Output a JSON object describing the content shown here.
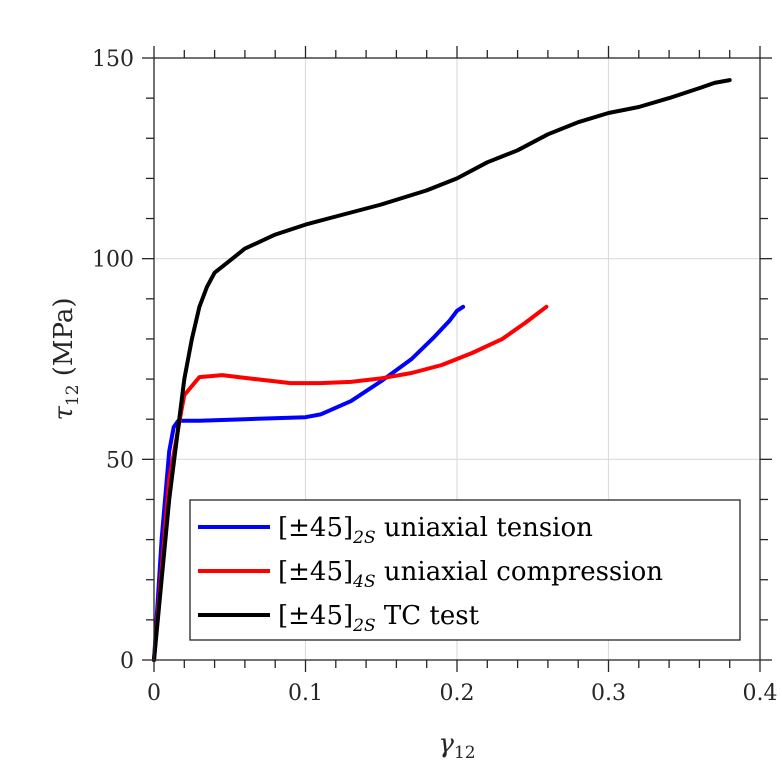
{
  "chart_data": {
    "type": "line",
    "xlabel": {
      "symbol": "γ",
      "sub": "12",
      "suffix": ""
    },
    "ylabel": {
      "symbol": "τ",
      "sub": "12",
      "suffix": " (MPa)"
    },
    "xlim": [
      0,
      0.4
    ],
    "ylim": [
      0,
      150
    ],
    "xticks": [
      0,
      0.1,
      0.2,
      0.3,
      0.4
    ],
    "xtick_labels": [
      "0",
      "0.1",
      "0.2",
      "0.3",
      "0.4"
    ],
    "yticks": [
      0,
      50,
      100,
      150
    ],
    "ytick_labels": [
      "0",
      "50",
      "100",
      "150"
    ],
    "x_minor_step": 0.02,
    "y_minor_step": 10,
    "grid": true,
    "legend_placement": "bottom-right",
    "series": [
      {
        "name": "[±45]2S uniaxial tension",
        "label_parts": {
          "main": "[±45]",
          "sub": "2S",
          "rest": " uniaxial tension"
        },
        "color": "#0000ff",
        "x": [
          0,
          0.005,
          0.01,
          0.013,
          0.016,
          0.03,
          0.06,
          0.1,
          0.11,
          0.13,
          0.15,
          0.17,
          0.185,
          0.195,
          0.2,
          0.204
        ],
        "y": [
          0,
          30,
          52,
          58,
          59.6,
          59.6,
          60,
          60.5,
          61.2,
          64.5,
          69.5,
          75,
          80.5,
          84.5,
          87,
          88
        ]
      },
      {
        "name": "[±45]4S uniaxial compression",
        "label_parts": {
          "main": "[±45]",
          "sub": "4S",
          "rest": " uniaxial compression"
        },
        "color": "#ff0000",
        "x": [
          0,
          0.01,
          0.018,
          0.02,
          0.03,
          0.045,
          0.06,
          0.09,
          0.11,
          0.13,
          0.15,
          0.17,
          0.19,
          0.21,
          0.23,
          0.245,
          0.259
        ],
        "y": [
          0,
          45,
          62,
          66,
          70.5,
          71,
          70.3,
          69,
          69,
          69.3,
          70.2,
          71.5,
          73.5,
          76.5,
          80,
          84,
          88
        ]
      },
      {
        "name": "[±45]2S TC test",
        "label_parts": {
          "main": "[±45]",
          "sub": "2S",
          "rest": " TC test"
        },
        "color": "#000000",
        "x": [
          0,
          0.01,
          0.02,
          0.025,
          0.03,
          0.035,
          0.04,
          0.05,
          0.06,
          0.08,
          0.1,
          0.12,
          0.15,
          0.18,
          0.2,
          0.22,
          0.24,
          0.26,
          0.28,
          0.3,
          0.32,
          0.34,
          0.36,
          0.37,
          0.38
        ],
        "y": [
          0,
          40,
          70,
          80,
          88,
          93,
          96.5,
          99.5,
          102.5,
          106,
          108.5,
          110.5,
          113.5,
          117,
          120,
          124,
          127,
          131,
          134,
          136.3,
          137.8,
          140,
          142.5,
          143.8,
          144.5
        ]
      }
    ]
  }
}
